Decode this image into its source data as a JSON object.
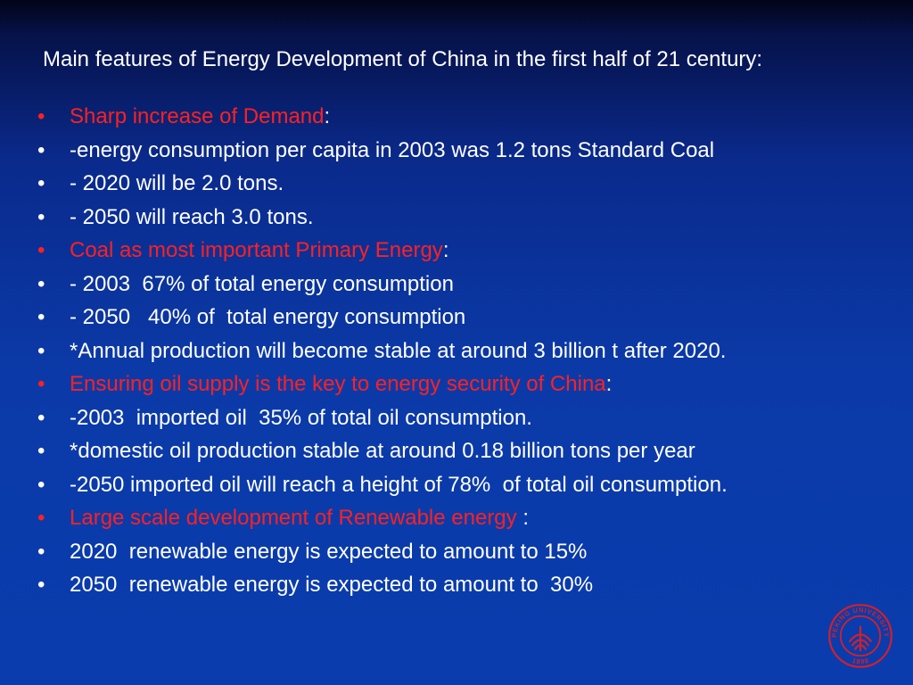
{
  "title": "Main features of Energy Development of China in the first half of 21 century:",
  "bullet_symbol": "•",
  "colors": {
    "highlight": "#ff2020",
    "text": "#ffffff",
    "background": "#0a3aa8",
    "seal": "#d0202a"
  },
  "bullets": [
    {
      "text": "Sharp increase of Demand",
      "suffix": ":",
      "highlight": true
    },
    {
      "text": "-energy consumption per capita in 2003 was 1.2 tons Standard Coal",
      "suffix": "",
      "highlight": false
    },
    {
      "text": "- 2020 will be 2.0 tons.",
      "suffix": "",
      "highlight": false
    },
    {
      "text": "- 2050 will reach 3.0 tons.",
      "suffix": "",
      "highlight": false
    },
    {
      "text": "Coal as most important Primary Energy",
      "suffix": ":",
      "highlight": true
    },
    {
      "text": "- 2003  67% of total energy consumption",
      "suffix": "",
      "highlight": false
    },
    {
      "text": "- 2050   40% of  total energy consumption",
      "suffix": "",
      "highlight": false
    },
    {
      "text": "*Annual production will become stable at around 3 billion t after 2020.",
      "suffix": "",
      "highlight": false
    },
    {
      "text": "Ensuring oil supply is the key to energy security of China",
      "suffix": ":",
      "highlight": true
    },
    {
      "text": "-2003  imported oil  35% of total oil consumption.",
      "suffix": "",
      "highlight": false
    },
    {
      "text": "*domestic oil production stable at around 0.18 billion tons per year",
      "suffix": "",
      "highlight": false
    },
    {
      "text": "-2050 imported oil will reach a height of 78%  of total oil consumption.",
      "suffix": "",
      "highlight": false
    },
    {
      "text": "Large scale development of Renewable energy",
      "suffix": " :",
      "highlight": true
    },
    {
      "text": "2020  renewable energy is expected to amount to 15%",
      "suffix": "",
      "highlight": false
    },
    {
      "text": "2050  renewable energy is expected to amount to  30%",
      "suffix": "",
      "highlight": false
    }
  ],
  "logo": {
    "name": "peking-university-seal",
    "ring_text": "PEKING UNIVERSITY",
    "year": "1898"
  }
}
